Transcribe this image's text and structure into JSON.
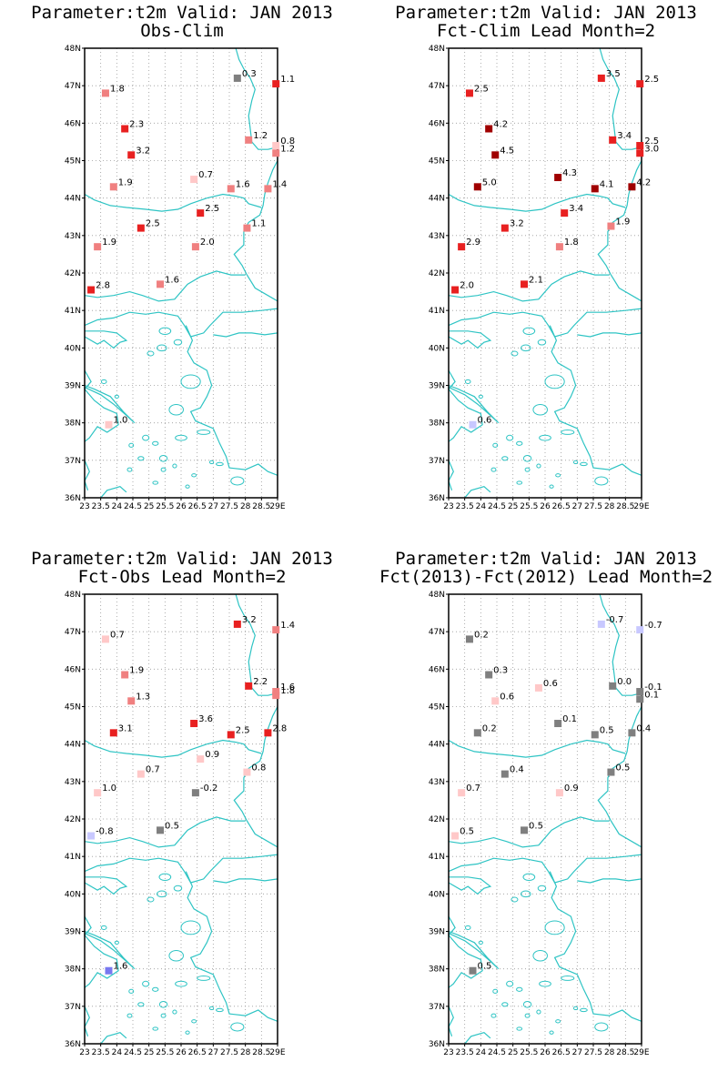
{
  "colors": {
    "coast": "#2ec4c4",
    "grid": "#9a9a9a",
    "frame": "#000000",
    "scale": {
      "gray": "#7f7f7f",
      "pale_blue": "#c8c8ff",
      "blue": "#7878f0",
      "pale_red": "#ffc8c8",
      "light_red": "#f08080",
      "red": "#e82020",
      "dark_red": "#a00000"
    }
  },
  "axes": {
    "lat_ticks": [
      "48N",
      "47N",
      "46N",
      "45N",
      "44N",
      "43N",
      "42N",
      "41N",
      "40N",
      "39N",
      "38N",
      "37N",
      "36N"
    ],
    "lon_ticks": [
      "23",
      "23.5",
      "24",
      "24.5",
      "25",
      "25.5",
      "26",
      "26.5",
      "27",
      "27.5",
      "28",
      "28.5",
      "29E"
    ],
    "lon_range": [
      23,
      29
    ],
    "lat_range": [
      36,
      48
    ]
  },
  "panels": [
    {
      "title1": "Parameter:t2m Valid: JAN 2013",
      "title2": "Obs-Clim",
      "stations": [
        {
          "lon": 27.75,
          "lat": 47.2,
          "v": "0.3",
          "c": "gray"
        },
        {
          "lon": 28.95,
          "lat": 47.05,
          "v": "1.1",
          "c": "red"
        },
        {
          "lon": 23.65,
          "lat": 46.8,
          "v": "1.8",
          "c": "light_red"
        },
        {
          "lon": 24.25,
          "lat": 45.85,
          "v": "2.3",
          "c": "red"
        },
        {
          "lon": 28.1,
          "lat": 45.55,
          "v": "1.2",
          "c": "light_red"
        },
        {
          "lon": 28.95,
          "lat": 45.4,
          "v": "0.8",
          "c": "pale_red"
        },
        {
          "lon": 28.95,
          "lat": 45.2,
          "v": "1.2",
          "c": "light_red"
        },
        {
          "lon": 24.45,
          "lat": 45.15,
          "v": "3.2",
          "c": "red"
        },
        {
          "lon": 26.4,
          "lat": 44.5,
          "v": "0.7",
          "c": "pale_red"
        },
        {
          "lon": 27.55,
          "lat": 44.25,
          "v": "1.6",
          "c": "light_red"
        },
        {
          "lon": 28.7,
          "lat": 44.25,
          "v": "1.4",
          "c": "light_red"
        },
        {
          "lon": 23.9,
          "lat": 44.3,
          "v": "1.9",
          "c": "light_red"
        },
        {
          "lon": 26.6,
          "lat": 43.6,
          "v": "2.5",
          "c": "red"
        },
        {
          "lon": 24.75,
          "lat": 43.2,
          "v": "2.5",
          "c": "red"
        },
        {
          "lon": 28.05,
          "lat": 43.2,
          "v": "1.1",
          "c": "light_red"
        },
        {
          "lon": 23.4,
          "lat": 42.7,
          "v": "1.9",
          "c": "light_red"
        },
        {
          "lon": 26.45,
          "lat": 42.7,
          "v": "2.0",
          "c": "light_red"
        },
        {
          "lon": 25.35,
          "lat": 41.7,
          "v": "1.6",
          "c": "light_red"
        },
        {
          "lon": 23.2,
          "lat": 41.55,
          "v": "2.8",
          "c": "red"
        },
        {
          "lon": 23.75,
          "lat": 37.95,
          "v": "1.0",
          "c": "pale_red"
        }
      ]
    },
    {
      "title1": "Parameter:t2m Valid: JAN 2013",
      "title2": "Fct-Clim Lead Month=2",
      "stations": [
        {
          "lon": 27.75,
          "lat": 47.2,
          "v": "3.5",
          "c": "red"
        },
        {
          "lon": 28.95,
          "lat": 47.05,
          "v": "2.5",
          "c": "red"
        },
        {
          "lon": 23.65,
          "lat": 46.8,
          "v": "2.5",
          "c": "red"
        },
        {
          "lon": 24.25,
          "lat": 45.85,
          "v": "4.2",
          "c": "dark_red"
        },
        {
          "lon": 28.1,
          "lat": 45.55,
          "v": "3.4",
          "c": "red"
        },
        {
          "lon": 28.95,
          "lat": 45.4,
          "v": "2.5",
          "c": "red"
        },
        {
          "lon": 28.95,
          "lat": 45.2,
          "v": "3.0",
          "c": "red"
        },
        {
          "lon": 24.45,
          "lat": 45.15,
          "v": "4.5",
          "c": "dark_red"
        },
        {
          "lon": 26.4,
          "lat": 44.55,
          "v": "4.3",
          "c": "dark_red"
        },
        {
          "lon": 27.55,
          "lat": 44.25,
          "v": "4.1",
          "c": "dark_red"
        },
        {
          "lon": 28.7,
          "lat": 44.3,
          "v": "4.2",
          "c": "dark_red"
        },
        {
          "lon": 23.9,
          "lat": 44.3,
          "v": "5.0",
          "c": "dark_red"
        },
        {
          "lon": 26.6,
          "lat": 43.6,
          "v": "3.4",
          "c": "red"
        },
        {
          "lon": 24.75,
          "lat": 43.2,
          "v": "3.2",
          "c": "red"
        },
        {
          "lon": 28.05,
          "lat": 43.25,
          "v": "1.9",
          "c": "light_red"
        },
        {
          "lon": 23.4,
          "lat": 42.7,
          "v": "2.9",
          "c": "red"
        },
        {
          "lon": 26.45,
          "lat": 42.7,
          "v": "1.8",
          "c": "light_red"
        },
        {
          "lon": 25.35,
          "lat": 41.7,
          "v": "2.1",
          "c": "red"
        },
        {
          "lon": 23.2,
          "lat": 41.55,
          "v": "2.0",
          "c": "red"
        },
        {
          "lon": 23.75,
          "lat": 37.95,
          "v": "0.6",
          "c": "pale_blue"
        }
      ]
    },
    {
      "title1": "Parameter:t2m Valid: JAN 2013",
      "title2": "Fct-Obs Lead Month=2",
      "stations": [
        {
          "lon": 27.75,
          "lat": 47.2,
          "v": "3.2",
          "c": "red"
        },
        {
          "lon": 28.95,
          "lat": 47.05,
          "v": "1.4",
          "c": "light_red"
        },
        {
          "lon": 23.65,
          "lat": 46.8,
          "v": "0.7",
          "c": "pale_red"
        },
        {
          "lon": 24.25,
          "lat": 45.85,
          "v": "1.9",
          "c": "light_red"
        },
        {
          "lon": 28.1,
          "lat": 45.55,
          "v": "2.2",
          "c": "red"
        },
        {
          "lon": 28.95,
          "lat": 45.4,
          "v": "1.6",
          "c": "light_red"
        },
        {
          "lon": 28.95,
          "lat": 45.3,
          "v": "1.8",
          "c": "light_red"
        },
        {
          "lon": 24.45,
          "lat": 45.15,
          "v": "1.3",
          "c": "light_red"
        },
        {
          "lon": 26.4,
          "lat": 44.55,
          "v": "3.6",
          "c": "red"
        },
        {
          "lon": 27.55,
          "lat": 44.25,
          "v": "2.5",
          "c": "red"
        },
        {
          "lon": 28.7,
          "lat": 44.3,
          "v": "2.8",
          "c": "red"
        },
        {
          "lon": 23.9,
          "lat": 44.3,
          "v": "3.1",
          "c": "red"
        },
        {
          "lon": 26.6,
          "lat": 43.6,
          "v": "0.9",
          "c": "pale_red"
        },
        {
          "lon": 24.75,
          "lat": 43.2,
          "v": "0.7",
          "c": "pale_red"
        },
        {
          "lon": 28.05,
          "lat": 43.25,
          "v": "0.8",
          "c": "pale_red"
        },
        {
          "lon": 23.4,
          "lat": 42.7,
          "v": "1.0",
          "c": "pale_red"
        },
        {
          "lon": 26.45,
          "lat": 42.7,
          "v": "-0.2",
          "c": "gray"
        },
        {
          "lon": 25.35,
          "lat": 41.7,
          "v": "0.5",
          "c": "gray"
        },
        {
          "lon": 23.2,
          "lat": 41.55,
          "v": "-0.8",
          "c": "pale_blue"
        },
        {
          "lon": 23.75,
          "lat": 37.95,
          "v": "1.6",
          "c": "blue"
        }
      ]
    },
    {
      "title1": "Parameter:t2m Valid: JAN 2013",
      "title2": "Fct(2013)-Fct(2012) Lead Month=2",
      "stations": [
        {
          "lon": 27.75,
          "lat": 47.2,
          "v": "-0.7",
          "c": "pale_blue"
        },
        {
          "lon": 28.95,
          "lat": 47.05,
          "v": "-0.7",
          "c": "pale_blue"
        },
        {
          "lon": 23.65,
          "lat": 46.8,
          "v": "0.2",
          "c": "gray"
        },
        {
          "lon": 24.25,
          "lat": 45.85,
          "v": "0.3",
          "c": "gray"
        },
        {
          "lon": 28.1,
          "lat": 45.55,
          "v": "0.0",
          "c": "gray"
        },
        {
          "lon": 25.8,
          "lat": 45.5,
          "v": "0.6",
          "c": "pale_red"
        },
        {
          "lon": 28.95,
          "lat": 45.4,
          "v": "-0.1",
          "c": "gray"
        },
        {
          "lon": 28.95,
          "lat": 45.2,
          "v": "0.1",
          "c": "gray"
        },
        {
          "lon": 24.45,
          "lat": 45.15,
          "v": "0.6",
          "c": "pale_red"
        },
        {
          "lon": 26.4,
          "lat": 44.55,
          "v": "0.1",
          "c": "gray"
        },
        {
          "lon": 27.55,
          "lat": 44.25,
          "v": "0.5",
          "c": "gray"
        },
        {
          "lon": 28.7,
          "lat": 44.3,
          "v": "0.4",
          "c": "gray"
        },
        {
          "lon": 23.9,
          "lat": 44.3,
          "v": "0.2",
          "c": "gray"
        },
        {
          "lon": 24.75,
          "lat": 43.2,
          "v": "0.4",
          "c": "gray"
        },
        {
          "lon": 28.05,
          "lat": 43.25,
          "v": "0.5",
          "c": "gray"
        },
        {
          "lon": 23.4,
          "lat": 42.7,
          "v": "0.7",
          "c": "pale_red"
        },
        {
          "lon": 26.45,
          "lat": 42.7,
          "v": "0.9",
          "c": "pale_red"
        },
        {
          "lon": 25.35,
          "lat": 41.7,
          "v": "0.5",
          "c": "gray"
        },
        {
          "lon": 23.2,
          "lat": 41.55,
          "v": "0.5",
          "c": "pale_red"
        },
        {
          "lon": 23.75,
          "lat": 37.95,
          "v": "0.5",
          "c": "gray"
        }
      ]
    }
  ]
}
